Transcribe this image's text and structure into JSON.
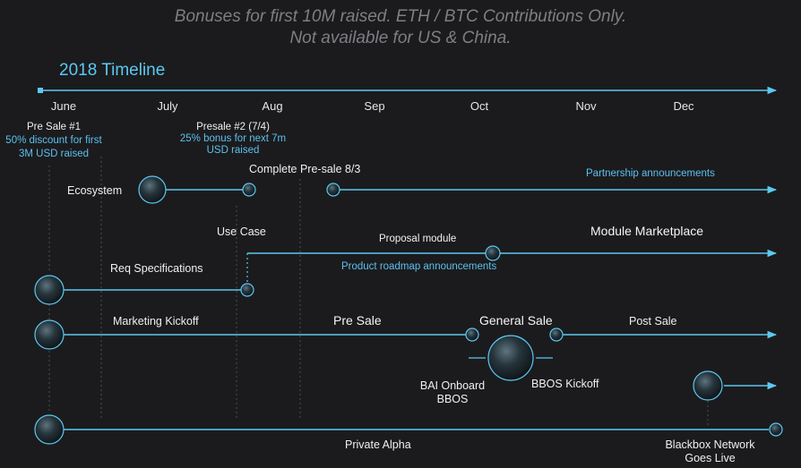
{
  "header": {
    "line1": "Bonuses for first 10M raised. ETH / BTC Contributions Only.",
    "line2": "Not available for US & China."
  },
  "title": "2018 Timeline",
  "months": [
    "June",
    "July",
    "Aug",
    "Sep",
    "Oct",
    "Nov",
    "Dec"
  ],
  "colors": {
    "accent": "#5cc8f2",
    "background": "#1b1b1d",
    "text": "#f0f0f0"
  },
  "presale1": {
    "title": "Pre Sale #1",
    "line2": "50% discount for first",
    "line3": "3M USD raised"
  },
  "presale2": {
    "title": "Presale #2 (7/4)",
    "line2": "25% bonus for next 7m",
    "line3": "USD raised"
  },
  "labels": {
    "complete_presale": "Complete Pre-sale 8/3",
    "partnership": "Partnership announcements",
    "ecosystem": "Ecosystem",
    "use_case": "Use Case",
    "proposal_module": "Proposal module",
    "module_marketplace": "Module Marketplace",
    "product_roadmap": "Product roadmap announcements",
    "req_specs": "Req Specifications",
    "marketing_kickoff": "Marketing Kickoff",
    "pre_sale": "Pre Sale",
    "general_sale": "General Sale",
    "post_sale": "Post Sale",
    "bai_onboard_1": "BAI Onboard",
    "bai_onboard_2": "BBOS",
    "bbos_kickoff": "BBOS Kickoff",
    "private_alpha": "Private Alpha",
    "blackbox_1": "Blackbox Network",
    "blackbox_2": "Goes Live"
  }
}
